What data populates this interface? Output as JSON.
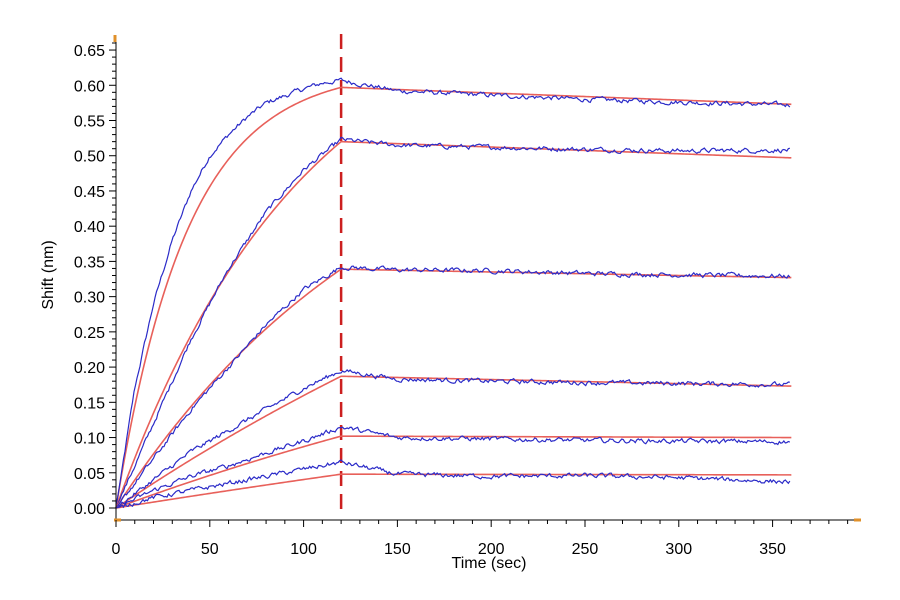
{
  "chart_data": {
    "type": "line",
    "title": "",
    "xlabel": "Time (sec)",
    "ylabel": "Shift (nm)",
    "xlim": [
      0,
      395
    ],
    "ylim": [
      0,
      0.66
    ],
    "x_ticks": [
      0,
      50,
      100,
      150,
      200,
      250,
      300,
      350
    ],
    "y_ticks": [
      0.0,
      0.05,
      0.1,
      0.15,
      0.2,
      0.25,
      0.3,
      0.35,
      0.4,
      0.45,
      0.5,
      0.55,
      0.6,
      0.65
    ],
    "grid": false,
    "legend": "none",
    "association_end": 120,
    "end_time": 360,
    "series": [
      {
        "kinetics": {
          "peak": 0.597,
          "tau": 38,
          "final": 0.573
        },
        "values": [
          [
            0,
            0.0
          ],
          [
            10,
            0.17
          ],
          [
            20,
            0.29
          ],
          [
            30,
            0.38
          ],
          [
            40,
            0.45
          ],
          [
            50,
            0.5
          ],
          [
            60,
            0.53
          ],
          [
            70,
            0.555
          ],
          [
            80,
            0.575
          ],
          [
            90,
            0.585
          ],
          [
            100,
            0.595
          ],
          [
            110,
            0.603
          ],
          [
            120,
            0.607
          ],
          [
            150,
            0.592
          ],
          [
            200,
            0.586
          ],
          [
            250,
            0.58
          ],
          [
            300,
            0.576
          ],
          [
            360,
            0.572
          ]
        ]
      },
      {
        "kinetics": {
          "peak": 0.52,
          "tau": 100,
          "final": 0.497
        },
        "values": [
          [
            0,
            0.0
          ],
          [
            20,
            0.12
          ],
          [
            40,
            0.24
          ],
          [
            60,
            0.34
          ],
          [
            80,
            0.42
          ],
          [
            100,
            0.48
          ],
          [
            120,
            0.523
          ],
          [
            150,
            0.515
          ],
          [
            200,
            0.512
          ],
          [
            250,
            0.509
          ],
          [
            300,
            0.507
          ],
          [
            360,
            0.508
          ]
        ]
      },
      {
        "kinetics": {
          "peak": 0.339,
          "tau": 150,
          "final": 0.327
        },
        "values": [
          [
            0,
            0.0
          ],
          [
            20,
            0.07
          ],
          [
            40,
            0.14
          ],
          [
            60,
            0.2
          ],
          [
            80,
            0.26
          ],
          [
            100,
            0.31
          ],
          [
            120,
            0.342
          ],
          [
            150,
            0.338
          ],
          [
            200,
            0.337
          ],
          [
            250,
            0.333
          ],
          [
            300,
            0.331
          ],
          [
            360,
            0.329
          ]
        ]
      },
      {
        "kinetics": {
          "peak": 0.187,
          "tau": 400,
          "final": 0.173
        },
        "values": [
          [
            0,
            0.0
          ],
          [
            20,
            0.04
          ],
          [
            40,
            0.08
          ],
          [
            60,
            0.11
          ],
          [
            80,
            0.14
          ],
          [
            100,
            0.17
          ],
          [
            120,
            0.195
          ],
          [
            150,
            0.183
          ],
          [
            200,
            0.18
          ],
          [
            250,
            0.178
          ],
          [
            300,
            0.177
          ],
          [
            360,
            0.175
          ]
        ]
      },
      {
        "kinetics": {
          "peak": 0.102,
          "tau": 400,
          "final": 0.1
        },
        "values": [
          [
            0,
            0.0
          ],
          [
            20,
            0.025
          ],
          [
            40,
            0.045
          ],
          [
            60,
            0.06
          ],
          [
            80,
            0.078
          ],
          [
            100,
            0.095
          ],
          [
            120,
            0.115
          ],
          [
            150,
            0.1
          ],
          [
            200,
            0.098
          ],
          [
            250,
            0.096
          ],
          [
            300,
            0.095
          ],
          [
            360,
            0.094
          ]
        ]
      },
      {
        "kinetics": {
          "peak": 0.048,
          "tau": 1000,
          "final": 0.047
        },
        "values": [
          [
            0,
            0.0
          ],
          [
            20,
            0.015
          ],
          [
            40,
            0.025
          ],
          [
            60,
            0.035
          ],
          [
            80,
            0.045
          ],
          [
            100,
            0.055
          ],
          [
            120,
            0.065
          ],
          [
            150,
            0.048
          ],
          [
            200,
            0.045
          ],
          [
            250,
            0.046
          ],
          [
            300,
            0.043
          ],
          [
            360,
            0.037
          ]
        ]
      }
    ],
    "colors": {
      "data": "#2b2bc8",
      "fit": "#e8605a",
      "marker": "#cc1f1f",
      "axis_end": "#e0902a"
    }
  }
}
